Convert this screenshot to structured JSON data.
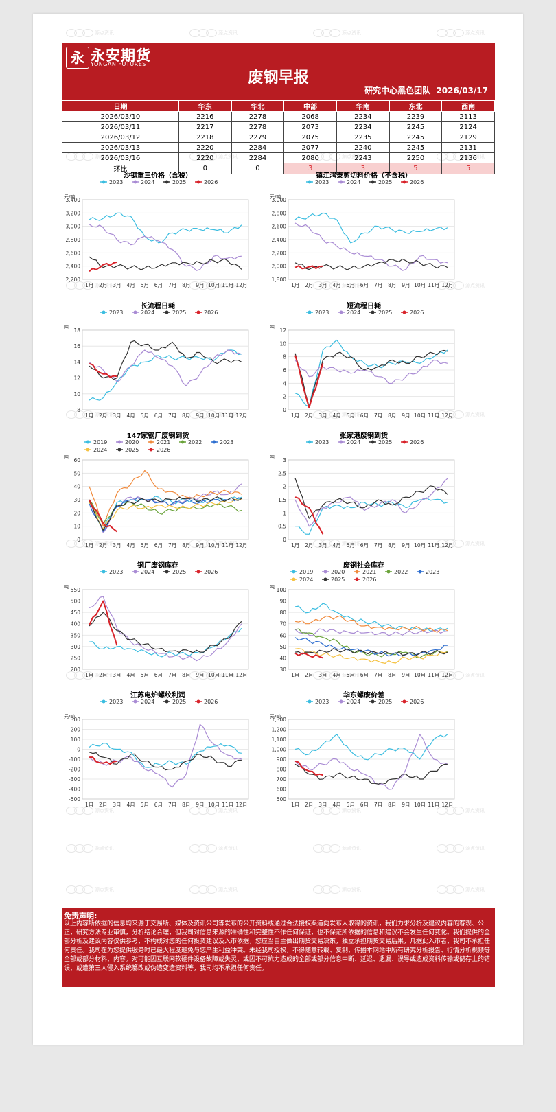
{
  "header": {
    "logo_mark": "永",
    "logo_cn": "永安期货",
    "logo_en": "YONGAN FUTURES",
    "title": "废钢早报",
    "team": "研究中心黑色团队",
    "date": "2026/03/17",
    "color": "#b81c22"
  },
  "watermark": {
    "line1": "源点资讯",
    "line2": "SOURCE POINT"
  },
  "price_table": {
    "headers": [
      "日期",
      "华东",
      "华北",
      "中部",
      "华南",
      "东北",
      "西南"
    ],
    "rows": [
      [
        "2026/03/10",
        "2216",
        "2278",
        "2068",
        "2234",
        "2239",
        "2113"
      ],
      [
        "2026/03/11",
        "2217",
        "2278",
        "2073",
        "2234",
        "2245",
        "2124"
      ],
      [
        "2026/03/12",
        "2218",
        "2279",
        "2075",
        "2235",
        "2245",
        "2129"
      ],
      [
        "2026/03/13",
        "2220",
        "2284",
        "2077",
        "2240",
        "2245",
        "2131"
      ],
      [
        "2026/03/16",
        "2220",
        "2284",
        "2080",
        "2243",
        "2250",
        "2136"
      ]
    ],
    "change_label": "环比",
    "change": [
      "0",
      "0",
      "3",
      "3",
      "5",
      "5"
    ]
  },
  "series_colors": {
    "2019": "#3bbde0",
    "2020": "#a98bd4",
    "2021": "#f08a3c",
    "2022": "#6aa33a",
    "2023": "#2f6fd0",
    "2024": "#f5c242",
    "2025": "#333333",
    "2026": "#d8232a",
    "std2023": "#3bbde0",
    "std2024": "#a98bd4",
    "std2025": "#333333",
    "std2026": "#d8232a"
  },
  "months": [
    "1月",
    "2月",
    "3月",
    "4月",
    "5月",
    "6月",
    "7月",
    "8月",
    "9月",
    "10月",
    "11月",
    "12月"
  ],
  "chart_data": [
    {
      "type": "line",
      "title": "沙钢重三价格（含税）",
      "unit": "元/吨",
      "ylim": [
        2200,
        3400
      ],
      "yticks": [
        "2,200",
        "2,400",
        "2,600",
        "2,800",
        "3,000",
        "3,200",
        "3,400"
      ],
      "series": [
        {
          "name": "2023",
          "values": [
            3100,
            3120,
            3200,
            3150,
            2850,
            2750,
            2900,
            2950,
            2950,
            2950,
            2900,
            3020
          ]
        },
        {
          "name": "2024",
          "values": [
            3030,
            2980,
            2800,
            2720,
            2850,
            2780,
            2650,
            2400,
            2350,
            2550,
            2520,
            2550
          ]
        },
        {
          "name": "2025",
          "values": [
            2540,
            2380,
            2400,
            2380,
            2370,
            2400,
            2450,
            2450,
            2450,
            2480,
            2480,
            2350
          ]
        },
        {
          "name": "2026",
          "values": [
            2320,
            2420,
            2460
          ]
        }
      ]
    },
    {
      "type": "line",
      "title": "镇江鸿泰剪切料价格（不含税）",
      "unit": "元/吨",
      "ylim": [
        1800,
        3000
      ],
      "yticks": [
        "1,800",
        "2,000",
        "2,200",
        "2,400",
        "2,600",
        "2,800",
        "3,000"
      ],
      "series": [
        {
          "name": "2023",
          "values": [
            2700,
            2750,
            2800,
            2700,
            2350,
            2500,
            2600,
            2550,
            2500,
            2520,
            2550,
            2580
          ]
        },
        {
          "name": "2024",
          "values": [
            2650,
            2580,
            2400,
            2300,
            2200,
            2150,
            2100,
            2000,
            1950,
            2150,
            2100,
            2050
          ]
        },
        {
          "name": "2025",
          "values": [
            2050,
            1950,
            2000,
            1980,
            1970,
            2000,
            2050,
            2100,
            2080,
            2050,
            2000,
            1980
          ]
        },
        {
          "name": "2026",
          "values": [
            1980,
            1990,
            2000
          ]
        }
      ]
    },
    {
      "type": "line",
      "title": "长流程日耗",
      "unit": "吨",
      "ylim": [
        8,
        18
      ],
      "yticks": [
        "8",
        "10",
        "12",
        "14",
        "16",
        "18"
      ],
      "series": [
        {
          "name": "2023",
          "values": [
            9.2,
            9.5,
            11.5,
            13.5,
            14,
            14.8,
            14.5,
            14.5,
            14.5,
            14.2,
            15.5,
            15
          ]
        },
        {
          "name": "2024",
          "values": [
            14,
            13,
            11.5,
            13.5,
            15.5,
            14.5,
            13.5,
            11,
            12.5,
            14.5,
            15.5,
            15
          ]
        },
        {
          "name": "2025",
          "values": [
            13.5,
            12,
            12,
            16.5,
            16.2,
            15.5,
            16.5,
            14.5,
            15.2,
            14,
            14.2,
            14
          ]
        },
        {
          "name": "2026",
          "values": [
            13.8,
            12.5,
            12.2
          ]
        }
      ]
    },
    {
      "type": "line",
      "title": "短流程日耗",
      "unit": "吨",
      "ylim": [
        0,
        12
      ],
      "yticks": [
        "0",
        "2",
        "4",
        "6",
        "8",
        "10",
        "12"
      ],
      "series": [
        {
          "name": "2023",
          "values": [
            2.5,
            0.5,
            9,
            10.5,
            8,
            7,
            6.5,
            7,
            7.2,
            7,
            8,
            9
          ]
        },
        {
          "name": "2024",
          "values": [
            7.5,
            5,
            6.5,
            6,
            5.5,
            6,
            5,
            4,
            5,
            6,
            7.5,
            7
          ]
        },
        {
          "name": "2025",
          "values": [
            8.5,
            0.5,
            7.5,
            8.5,
            8,
            6,
            6.5,
            7.5,
            7,
            8,
            8.5,
            8.8
          ]
        },
        {
          "name": "2026",
          "values": [
            8.2,
            0.3,
            7
          ]
        }
      ]
    },
    {
      "type": "line",
      "title": "147家钢厂废钢到货",
      "unit": "吨",
      "ylim": [
        0,
        60
      ],
      "yticks": [
        "0",
        "10",
        "20",
        "30",
        "40",
        "50",
        "60"
      ],
      "series": [
        {
          "name": "2019",
          "values": [
            28,
            8,
            28,
            30,
            30,
            32,
            28,
            30,
            28,
            30,
            30,
            32
          ]
        },
        {
          "name": "2020",
          "values": [
            30,
            5,
            25,
            32,
            30,
            28,
            26,
            30,
            32,
            36,
            34,
            42
          ]
        },
        {
          "name": "2021",
          "values": [
            40,
            10,
            35,
            42,
            52,
            38,
            36,
            32,
            33,
            35,
            36,
            34
          ]
        },
        {
          "name": "2022",
          "values": [
            30,
            12,
            26,
            28,
            25,
            20,
            22,
            24,
            23,
            26,
            25,
            22
          ]
        },
        {
          "name": "2023",
          "values": [
            27,
            6,
            25,
            30,
            30,
            28,
            27,
            29,
            28,
            30,
            30,
            31
          ]
        },
        {
          "name": "2024",
          "values": [
            28,
            8,
            22,
            25,
            24,
            26,
            25,
            24,
            26,
            27,
            28,
            30
          ]
        },
        {
          "name": "2025",
          "values": [
            29,
            7,
            26,
            28,
            30,
            29,
            30,
            31,
            29,
            31,
            30,
            31
          ]
        },
        {
          "name": "2026",
          "values": [
            30,
            12,
            6
          ]
        }
      ]
    },
    {
      "type": "line",
      "title": "张家港废钢到货",
      "unit": "吨",
      "ylim": [
        0,
        3
      ],
      "yticks": [
        "0",
        "0.5",
        "1",
        "1.5",
        "2",
        "2.5",
        "3"
      ],
      "series": [
        {
          "name": "2023",
          "values": [
            0.5,
            0.2,
            1.2,
            1.3,
            1.2,
            1.4,
            1.3,
            1.4,
            1.2,
            1.5,
            1.5,
            1.4
          ]
        },
        {
          "name": "2024",
          "values": [
            1.5,
            0.5,
            1.2,
            1.4,
            1.6,
            1.1,
            1.3,
            1.5,
            1.0,
            1.4,
            1.8,
            2.3
          ]
        },
        {
          "name": "2025",
          "values": [
            2.3,
            0.8,
            1.3,
            1.5,
            1.4,
            1.2,
            1.5,
            1.3,
            1.6,
            1.8,
            2.0,
            1.7
          ]
        },
        {
          "name": "2026",
          "values": [
            1.6,
            1.2,
            0.2
          ]
        }
      ]
    },
    {
      "type": "line",
      "title": "钢厂废钢库存",
      "unit": "吨",
      "ylim": [
        200,
        550
      ],
      "yticks": [
        "200",
        "250",
        "300",
        "350",
        "400",
        "450",
        "500",
        "550"
      ],
      "series": [
        {
          "name": "2023",
          "values": [
            320,
            290,
            300,
            290,
            280,
            260,
            270,
            265,
            270,
            300,
            340,
            380
          ]
        },
        {
          "name": "2024",
          "values": [
            470,
            520,
            380,
            320,
            290,
            270,
            255,
            250,
            245,
            275,
            320,
            400
          ]
        },
        {
          "name": "2025",
          "values": [
            390,
            450,
            370,
            330,
            310,
            290,
            280,
            285,
            275,
            305,
            335,
            410
          ]
        },
        {
          "name": "2026",
          "values": [
            395,
            500,
            305
          ]
        }
      ]
    },
    {
      "type": "line",
      "title": "废钢社会库存",
      "unit": "吨",
      "ylim": [
        30,
        100
      ],
      "yticks": [
        "30",
        "40",
        "50",
        "60",
        "70",
        "80",
        "90",
        "100"
      ],
      "series": [
        {
          "name": "2019",
          "values": [
            85,
            80,
            88,
            80,
            75,
            72,
            70,
            67,
            66,
            65,
            64,
            66
          ]
        },
        {
          "name": "2020",
          "values": [
            65,
            60,
            65,
            63,
            62,
            62,
            61,
            61,
            62,
            63,
            64,
            63
          ]
        },
        {
          "name": "2021",
          "values": [
            72,
            70,
            75,
            76,
            73,
            68,
            67,
            66,
            66,
            66,
            64,
            64
          ]
        },
        {
          "name": "2022",
          "values": [
            65,
            62,
            58,
            55,
            47,
            44,
            42,
            43,
            45,
            40,
            44,
            46
          ]
        },
        {
          "name": "2023",
          "values": [
            58,
            55,
            52,
            48,
            47,
            46,
            44,
            43,
            43,
            44,
            47,
            51
          ]
        },
        {
          "name": "2024",
          "values": [
            48,
            45,
            43,
            42,
            40,
            39,
            37,
            36,
            40,
            40,
            42,
            45
          ]
        },
        {
          "name": "2025",
          "values": [
            45,
            45,
            46,
            47,
            46,
            45,
            44,
            44,
            43,
            44,
            45,
            45
          ]
        },
        {
          "name": "2026",
          "values": [
            44,
            42,
            40
          ]
        }
      ]
    },
    {
      "type": "line",
      "title": "江苏电炉螺纹利润",
      "unit": "元/吨",
      "ylim": [
        -500,
        300
      ],
      "yticks": [
        "-500",
        "-400",
        "-300",
        "-200",
        "-100",
        "0",
        "100",
        "200",
        "300"
      ],
      "series": [
        {
          "name": "2023",
          "values": [
            20,
            60,
            0,
            -30,
            -180,
            -150,
            -130,
            -150,
            -20,
            30,
            40,
            -40
          ]
        },
        {
          "name": "2024",
          "values": [
            -80,
            -150,
            -120,
            -80,
            -200,
            -250,
            -380,
            -250,
            250,
            50,
            -60,
            -100
          ]
        },
        {
          "name": "2025",
          "values": [
            -30,
            -80,
            -150,
            -50,
            -120,
            -180,
            -200,
            -120,
            -50,
            -100,
            -170,
            -110
          ]
        },
        {
          "name": "2026",
          "values": [
            -80,
            -140,
            -120
          ]
        }
      ]
    },
    {
      "type": "line",
      "title": "华东螺废价差",
      "unit": "元/吨",
      "ylim": [
        500,
        1300
      ],
      "yticks": [
        "500",
        "600",
        "700",
        "800",
        "900",
        "1,000",
        "1,100",
        "1,200",
        "1,300"
      ],
      "series": [
        {
          "name": "2023",
          "values": [
            1000,
            950,
            1050,
            1150,
            980,
            900,
            950,
            1000,
            1000,
            900,
            1100,
            1150
          ]
        },
        {
          "name": "2024",
          "values": [
            880,
            800,
            850,
            900,
            800,
            750,
            650,
            600,
            800,
            1150,
            900,
            850
          ]
        },
        {
          "name": "2025",
          "values": [
            850,
            750,
            700,
            750,
            720,
            700,
            650,
            700,
            750,
            700,
            780,
            850
          ]
        },
        {
          "name": "2026",
          "values": [
            880,
            780,
            740
          ]
        }
      ]
    }
  ],
  "disclaimer": {
    "title": "免责声明:",
    "body": "以上内容所依据的信息均来源于交易所、媒体及资讯公司等发布的公开资料或通过合法授权渠道向发布人取得的资讯，我们力求分析及建议内容的客观、公正，研究方法专业审慎，分析结论合理，但我司对信息来源的准确性和完整性不作任何保证，也不保证所依据的信息和建议不会发生任何变化。我们提供的全部分析及建议内容仅供参考，不构成对您的任何投资建议及入市依据，您应当自主做出期货交易决策，独立承担期货交易后果，凡据此入市者，我司不承担任何责任。我司在为您提供服务时已最大程度避免与您产生利益冲突。未经我司授权，不得随意转载、复制、传播本网站中所有研究分析报告、行情分析视频等全部或部分材料、内容。对可能因互联网软硬件设备故障或失灵、或因不可抗力造成的全部或部分信息中断、延迟、遗漏、误导或造成资料传输或储存上的错误、或遭第三人侵入系统篡改或伪造变造资料等，我司均不承担任何责任。"
  }
}
